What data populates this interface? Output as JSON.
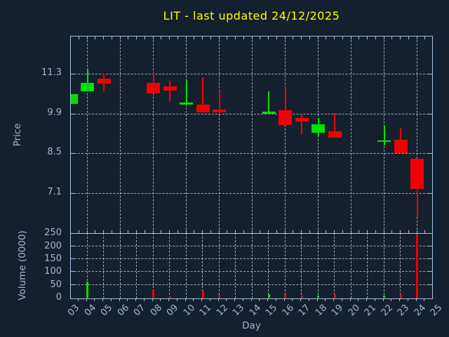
{
  "title": "LIT - last updated 24/12/2025",
  "colors": {
    "background": "#15202e",
    "axis": "#a3c0de",
    "grid": "#cdd6e0",
    "text": "#9fb6d2",
    "title_text": "#ffff00",
    "up": "#00e000",
    "down": "#f20000"
  },
  "chart_data": [
    {
      "type": "candlestick",
      "title": "LIT - last updated 24/12/2025",
      "xlabel": "Day",
      "ylabel": "Price",
      "grid": true,
      "y_ticks": [
        11.3,
        9.9,
        8.5,
        7.1
      ],
      "y_range": [
        5.65,
        12.64
      ],
      "x_range": [
        3,
        25
      ],
      "x_tick_labels": [
        "03",
        "04",
        "05",
        "06",
        "07",
        "08",
        "09",
        "10",
        "11",
        "12",
        "13",
        "14",
        "15",
        "16",
        "17",
        "18",
        "19",
        "20",
        "21",
        "22",
        "23",
        "24",
        "25"
      ],
      "x_grid_step_days": 2,
      "candles": [
        {
          "day": 3,
          "open": 10.27,
          "high": 10.6,
          "low": 10.27,
          "close": 10.6
        },
        {
          "day": 4,
          "open": 10.71,
          "high": 11.5,
          "low": 10.71,
          "close": 11.01
        },
        {
          "day": 5,
          "open": 11.15,
          "high": 11.32,
          "low": 10.7,
          "close": 10.98
        },
        {
          "day": 8,
          "open": 11.01,
          "high": 11.38,
          "low": 10.63,
          "close": 10.64
        },
        {
          "day": 9,
          "open": 10.87,
          "high": 11.09,
          "low": 10.33,
          "close": 10.72
        },
        {
          "day": 10,
          "open": 10.24,
          "high": 11.1,
          "low": 10.24,
          "close": 10.3
        },
        {
          "day": 11,
          "open": 10.24,
          "high": 11.2,
          "low": 9.96,
          "close": 9.96
        },
        {
          "day": 12,
          "open": 10.06,
          "high": 10.72,
          "low": 9.95,
          "close": 9.96
        },
        {
          "day": 15,
          "open": 9.92,
          "high": 10.71,
          "low": 9.92,
          "close": 10.0
        },
        {
          "day": 16,
          "open": 10.04,
          "high": 10.89,
          "low": 9.52,
          "close": 9.52
        },
        {
          "day": 17,
          "open": 9.77,
          "high": 9.92,
          "low": 9.19,
          "close": 9.65
        },
        {
          "day": 18,
          "open": 9.24,
          "high": 9.76,
          "low": 9.13,
          "close": 9.54
        },
        {
          "day": 19,
          "open": 9.29,
          "high": 9.94,
          "low": 9.07,
          "close": 9.07
        },
        {
          "day": 22,
          "open": 8.95,
          "high": 9.48,
          "low": 8.8,
          "close": 8.97
        },
        {
          "day": 23,
          "open": 9.0,
          "high": 9.42,
          "low": 8.49,
          "close": 8.53
        },
        {
          "day": 24,
          "open": 8.33,
          "high": 8.33,
          "low": 6.26,
          "close": 7.26
        }
      ]
    },
    {
      "type": "bar",
      "ylabel": "Volume (0000)",
      "grid": true,
      "y_ticks": [
        250,
        200,
        150,
        100,
        50,
        0
      ],
      "y_range": [
        0,
        251
      ],
      "x_grid_step_days": 1,
      "bars": [
        {
          "day": 4,
          "value": 62,
          "direction": "up"
        },
        {
          "day": 5,
          "value": 3,
          "direction": "down"
        },
        {
          "day": 8,
          "value": 30,
          "direction": "down"
        },
        {
          "day": 9,
          "value": 6,
          "direction": "down"
        },
        {
          "day": 11,
          "value": 28,
          "direction": "down"
        },
        {
          "day": 12,
          "value": 10,
          "direction": "down"
        },
        {
          "day": 15,
          "value": 15,
          "direction": "up"
        },
        {
          "day": 16,
          "value": 14,
          "direction": "down"
        },
        {
          "day": 17,
          "value": 9,
          "direction": "down"
        },
        {
          "day": 18,
          "value": 7,
          "direction": "up"
        },
        {
          "day": 19,
          "value": 15,
          "direction": "down"
        },
        {
          "day": 22,
          "value": 8,
          "direction": "up"
        },
        {
          "day": 23,
          "value": 15,
          "direction": "down"
        },
        {
          "day": 24,
          "value": 245,
          "direction": "down"
        }
      ]
    }
  ]
}
